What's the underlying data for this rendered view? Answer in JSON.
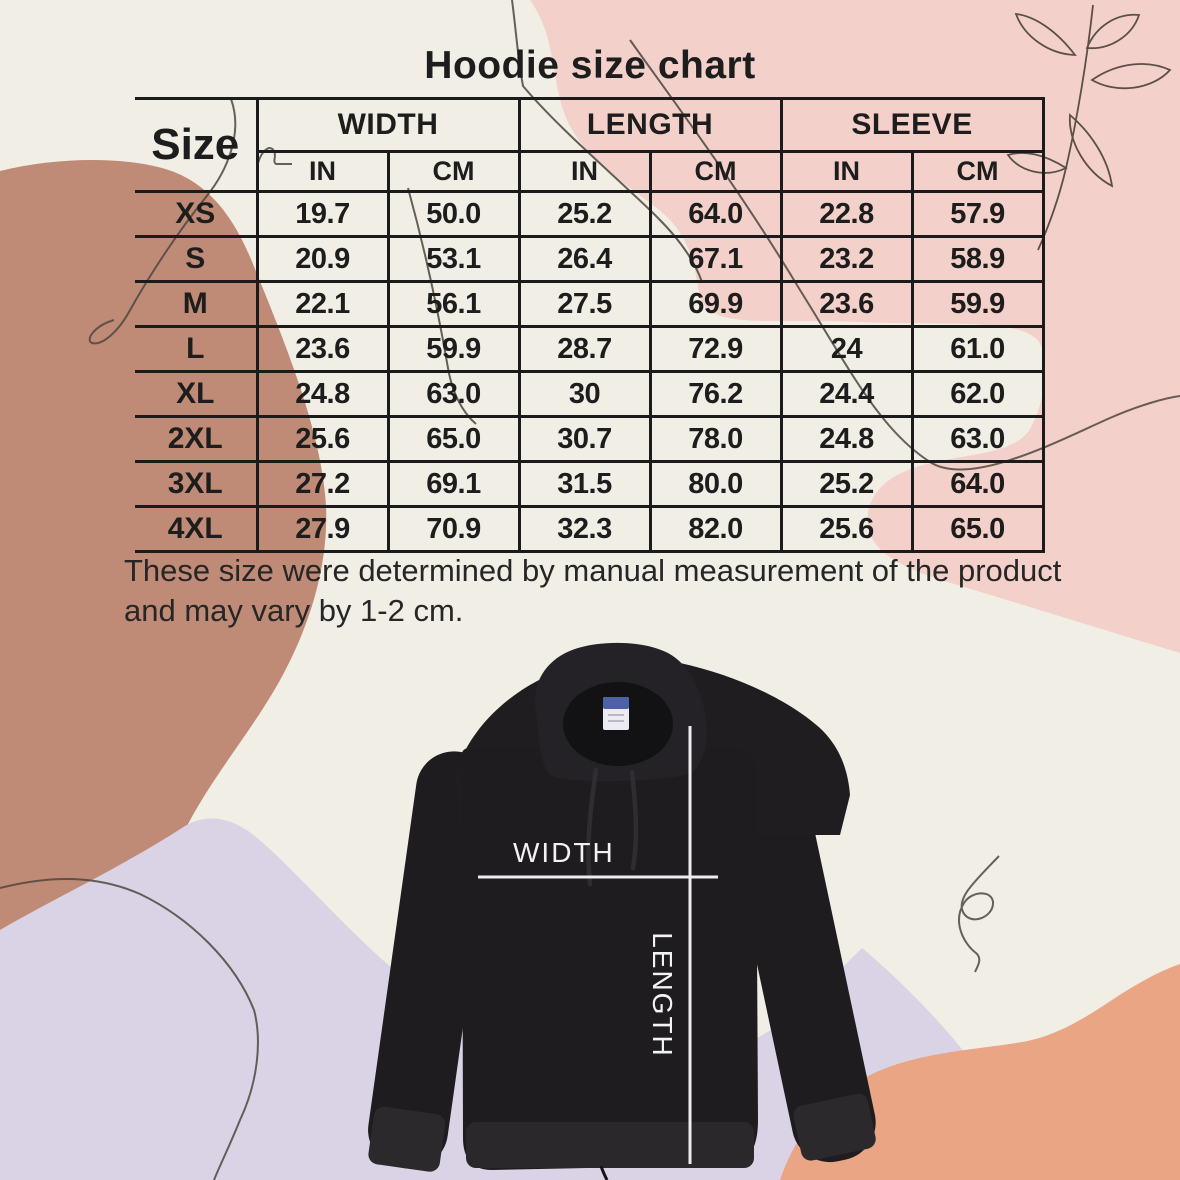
{
  "page": {
    "title": "Hoodie size chart"
  },
  "table": {
    "size_header": "Size",
    "groups": [
      {
        "label": "WIDTH"
      },
      {
        "label": "LENGTH"
      },
      {
        "label": "SLEEVE"
      }
    ],
    "unit_headers": [
      "IN",
      "CM",
      "IN",
      "CM",
      "IN",
      "CM"
    ],
    "rows": [
      {
        "size": "XS",
        "cells": [
          "19.7",
          "50.0",
          "25.2",
          "64.0",
          "22.8",
          "57.9"
        ]
      },
      {
        "size": "S",
        "cells": [
          "20.9",
          "53.1",
          "26.4",
          "67.1",
          "23.2",
          "58.9"
        ]
      },
      {
        "size": "M",
        "cells": [
          "22.1",
          "56.1",
          "27.5",
          "69.9",
          "23.6",
          "59.9"
        ]
      },
      {
        "size": "L",
        "cells": [
          "23.6",
          "59.9",
          "28.7",
          "72.9",
          "24",
          "61.0"
        ]
      },
      {
        "size": "XL",
        "cells": [
          "24.8",
          "63.0",
          "30",
          "76.2",
          "24.4",
          "62.0"
        ]
      },
      {
        "size": "2XL",
        "cells": [
          "25.6",
          "65.0",
          "30.7",
          "78.0",
          "24.8",
          "63.0"
        ]
      },
      {
        "size": "3XL",
        "cells": [
          "27.2",
          "69.1",
          "31.5",
          "80.0",
          "25.2",
          "64.0"
        ]
      },
      {
        "size": "4XL",
        "cells": [
          "27.9",
          "70.9",
          "32.3",
          "82.0",
          "25.6",
          "65.0"
        ]
      }
    ]
  },
  "note": {
    "line1": "These size were determined by manual measurement of the product",
    "line2": "and may vary by 1-2 cm."
  },
  "diagram": {
    "width_label": "WIDTH",
    "length_label": "LENGTH"
  },
  "colors": {
    "background": "#f1eee5",
    "blob_pink": "#f4d0ca",
    "blob_terracotta": "#bf8b76",
    "blob_lavender": "#d9d3e5",
    "blob_peach": "#e9a584",
    "table_border": "#1b1b1b",
    "text_dark": "#1d1d1d",
    "hoodie_black": "#1e1c1f",
    "measure_white": "#ededed",
    "tag_blue": "#4e61a8"
  },
  "chart_data": {
    "type": "table",
    "title": "Hoodie size chart",
    "columns": [
      "Size",
      "Width (IN)",
      "Width (CM)",
      "Length (IN)",
      "Length (CM)",
      "Sleeve (IN)",
      "Sleeve (CM)"
    ],
    "rows": [
      [
        "XS",
        19.7,
        50.0,
        25.2,
        64.0,
        22.8,
        57.9
      ],
      [
        "S",
        20.9,
        53.1,
        26.4,
        67.1,
        23.2,
        58.9
      ],
      [
        "M",
        22.1,
        56.1,
        27.5,
        69.9,
        23.6,
        59.9
      ],
      [
        "L",
        23.6,
        59.9,
        28.7,
        72.9,
        24,
        61.0
      ],
      [
        "XL",
        24.8,
        63.0,
        30,
        76.2,
        24.4,
        62.0
      ],
      [
        "2XL",
        25.6,
        65.0,
        30.7,
        78.0,
        24.8,
        63.0
      ],
      [
        "3XL",
        27.2,
        69.1,
        31.5,
        80.0,
        25.2,
        64.0
      ],
      [
        "4XL",
        27.9,
        70.9,
        32.3,
        82.0,
        25.6,
        65.0
      ]
    ],
    "note": "These size were determined by manual measurement of the product and may vary by 1-2 cm."
  }
}
